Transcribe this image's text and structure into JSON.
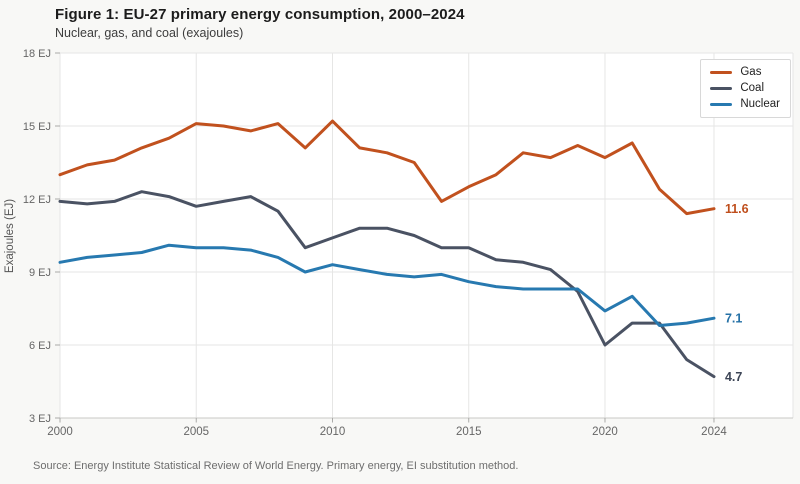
{
  "header": {
    "title": "Figure 1: EU-27 primary energy consumption, 2000–2024",
    "subtitle": "Nuclear, gas, and coal (exajoules)"
  },
  "chart_data": {
    "type": "line",
    "x": [
      2000,
      2001,
      2002,
      2003,
      2004,
      2005,
      2006,
      2007,
      2008,
      2009,
      2010,
      2011,
      2012,
      2013,
      2014,
      2015,
      2016,
      2017,
      2018,
      2019,
      2020,
      2021,
      2022,
      2023,
      2024
    ],
    "series": [
      {
        "name": "Gas",
        "color": "#c1511e",
        "label_color": "#bf4e1c",
        "end_label": "11.6",
        "values": [
          13.0,
          13.4,
          13.6,
          14.1,
          14.5,
          15.1,
          15.0,
          14.8,
          15.1,
          14.1,
          15.2,
          14.1,
          13.9,
          13.5,
          11.9,
          12.5,
          13.0,
          13.9,
          13.7,
          14.2,
          13.7,
          14.3,
          12.4,
          11.4,
          11.6
        ]
      },
      {
        "name": "Coal",
        "color": "#4a5263",
        "label_color": "#3d4556",
        "end_label": "4.7",
        "values": [
          11.9,
          11.8,
          11.9,
          12.3,
          12.1,
          11.7,
          11.9,
          12.1,
          11.5,
          10.0,
          10.4,
          10.8,
          10.8,
          10.5,
          10.0,
          10.0,
          9.5,
          9.4,
          9.1,
          8.2,
          6.0,
          6.9,
          6.9,
          5.4,
          4.7
        ]
      },
      {
        "name": "Nuclear",
        "color": "#2779b0",
        "label_color": "#2470a6",
        "end_label": "7.1",
        "values": [
          9.4,
          9.6,
          9.7,
          9.8,
          10.1,
          10.0,
          10.0,
          9.9,
          9.6,
          9.0,
          9.3,
          9.1,
          8.9,
          8.8,
          8.9,
          8.6,
          8.4,
          8.3,
          8.3,
          8.3,
          7.4,
          8.0,
          6.8,
          6.9,
          7.1
        ]
      }
    ],
    "title": "Figure 1: EU-27 primary energy consumption, 2000–2024",
    "xlabel": "",
    "ylabel": "Exajoules (EJ)",
    "ylim": [
      3,
      18
    ],
    "xlim": [
      2000,
      2026.9
    ],
    "yticks": [
      18,
      15,
      12,
      9,
      6,
      3
    ],
    "ytick_suffix": " EJ",
    "xticks": [
      2000,
      2005,
      2010,
      2015,
      2020,
      2024
    ],
    "grid": true,
    "legend_position": "top-right",
    "plot_bg": "#ffffff",
    "page_bg": "#f8f8f6",
    "grid_color": "#e6e6e5",
    "axis_color": "#c8c8c6",
    "tick_color": "#aaaaa8"
  },
  "footer": {
    "source": "Source: Energy Institute Statistical Review of World Energy. Primary energy, EI substitution method."
  }
}
